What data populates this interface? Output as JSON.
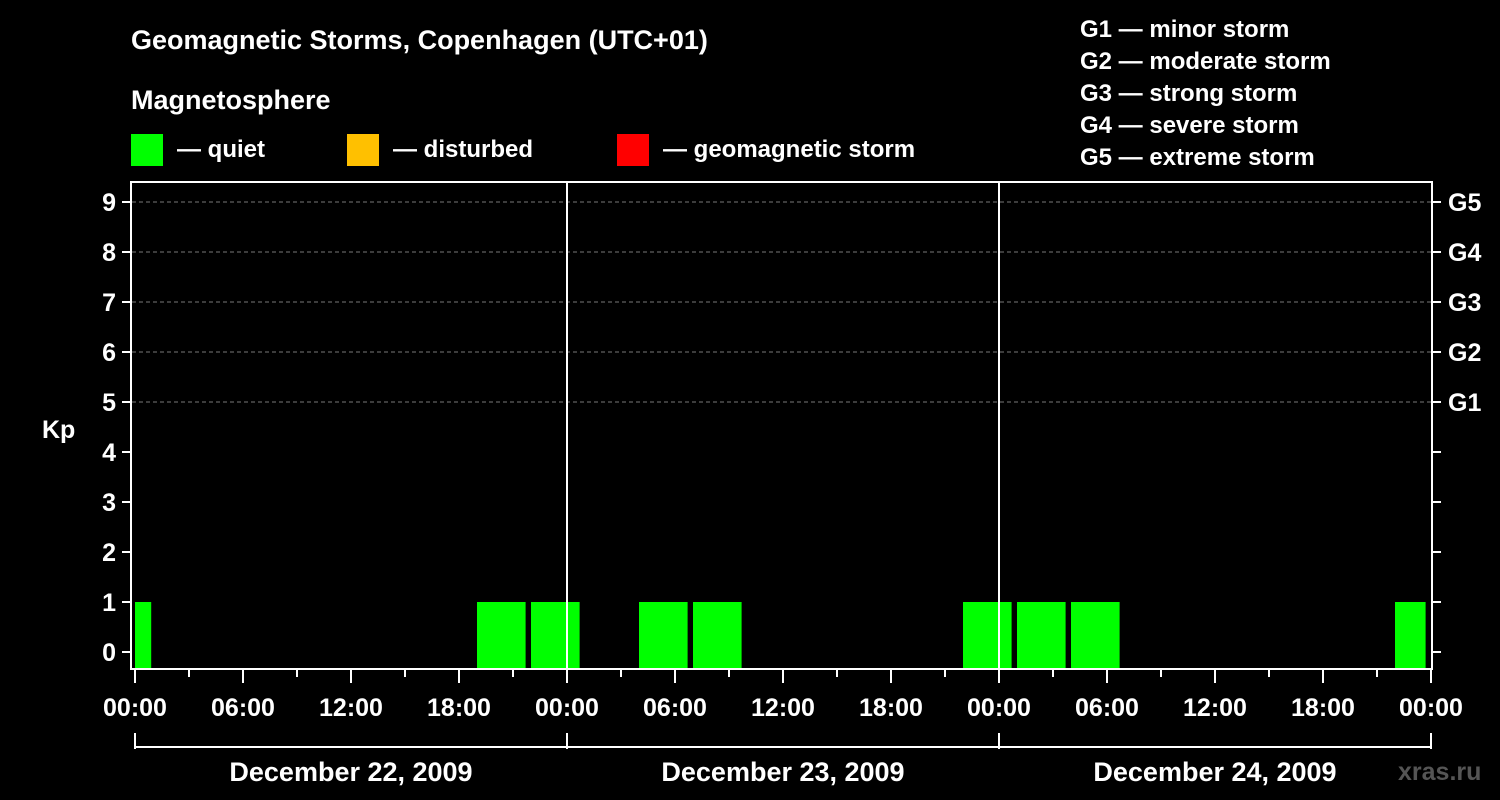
{
  "chart_data": {
    "type": "bar",
    "title": "Geomagnetic Storms, Copenhagen (UTC+01)",
    "legend": {
      "title": "Magnetosphere",
      "items": [
        {
          "label": "— quiet",
          "color": "#00ff00"
        },
        {
          "label": "— disturbed",
          "color": "#ffc000"
        },
        {
          "label": "— geomagnetic storm",
          "color": "#ff0000"
        }
      ]
    },
    "storm_scale": [
      "G1 — minor storm",
      "G2 — moderate storm",
      "G3 — strong storm",
      "G4 — severe storm",
      "G5 — extreme storm"
    ],
    "ylabel": "Kp",
    "ylim": [
      0,
      9
    ],
    "y_ticks": [
      "0",
      "1",
      "2",
      "3",
      "4",
      "5",
      "6",
      "7",
      "8",
      "9"
    ],
    "right_ticks": [
      {
        "kp": 5,
        "label": "G1"
      },
      {
        "kp": 6,
        "label": "G2"
      },
      {
        "kp": 7,
        "label": "G3"
      },
      {
        "kp": 8,
        "label": "G4"
      },
      {
        "kp": 9,
        "label": "G5"
      }
    ],
    "x_tick_labels": [
      "00:00",
      "06:00",
      "12:00",
      "18:00",
      "00:00",
      "06:00",
      "12:00",
      "18:00",
      "00:00",
      "06:00",
      "12:00",
      "18:00",
      "00:00"
    ],
    "days": [
      "December 22, 2009",
      "December 23, 2009",
      "December 24, 2009"
    ],
    "grid": "dashed horizontal at Kp 5–9",
    "bars": [
      {
        "start_hour": 0,
        "end_hour": 0.9,
        "kp": 1,
        "color": "#00ff00"
      },
      {
        "start_hour": 19,
        "end_hour": 21.7,
        "kp": 1,
        "color": "#00ff00"
      },
      {
        "start_hour": 22,
        "end_hour": 24.7,
        "kp": 1,
        "color": "#00ff00"
      },
      {
        "start_hour": 28,
        "end_hour": 30.7,
        "kp": 1,
        "color": "#00ff00"
      },
      {
        "start_hour": 31,
        "end_hour": 33.7,
        "kp": 1,
        "color": "#00ff00"
      },
      {
        "start_hour": 46,
        "end_hour": 48.7,
        "kp": 1,
        "color": "#00ff00"
      },
      {
        "start_hour": 49,
        "end_hour": 51.7,
        "kp": 1,
        "color": "#00ff00"
      },
      {
        "start_hour": 52,
        "end_hour": 54.7,
        "kp": 1,
        "color": "#00ff00"
      },
      {
        "start_hour": 70,
        "end_hour": 71.7,
        "kp": 1,
        "color": "#00ff00"
      }
    ]
  },
  "watermark": "xras.ru"
}
